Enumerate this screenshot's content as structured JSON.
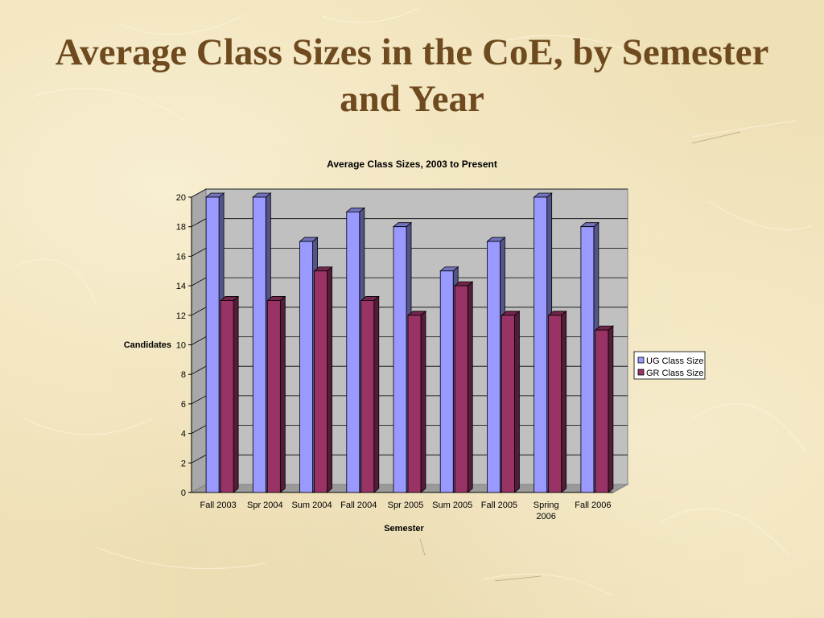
{
  "slide": {
    "title": "Average Class Sizes in the CoE, by Semester and Year"
  },
  "chart_data": {
    "type": "bar",
    "title": "Average Class Sizes, 2003 to Present",
    "xlabel": "Semester",
    "ylabel": "Candidates",
    "categories": [
      "Fall 2003",
      "Spr 2004",
      "Sum 2004",
      "Fall 2004",
      "Spr 2005",
      "Sum 2005",
      "Fall 2005",
      "Spring 2006",
      "Fall 2006"
    ],
    "series": [
      {
        "name": "UG Class Size",
        "values": [
          20,
          20,
          17,
          19,
          18,
          15,
          17,
          20,
          18
        ],
        "color": "#9999ff"
      },
      {
        "name": "GR Class Size",
        "values": [
          13,
          13,
          15,
          13,
          12,
          14,
          12,
          12,
          11
        ],
        "color": "#993366"
      }
    ],
    "ylim": [
      0,
      20
    ],
    "yticks": [
      0,
      2,
      4,
      6,
      8,
      10,
      12,
      14,
      16,
      18,
      20
    ],
    "grid": true,
    "legend": "right",
    "plot_background": "#c0c0c0"
  }
}
